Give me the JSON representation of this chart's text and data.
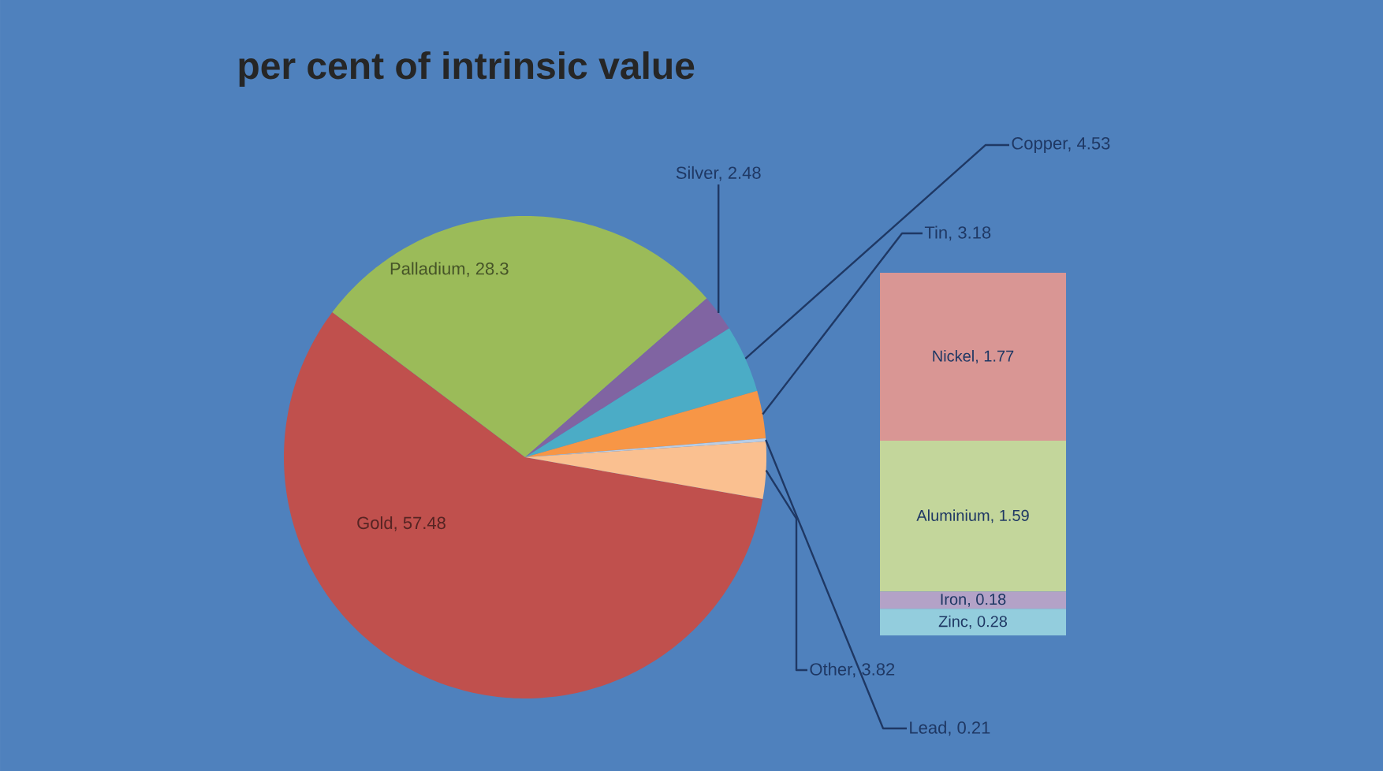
{
  "chart_data": [
    {
      "type": "pie",
      "title": "per cent of intrinsic value",
      "categories": [
        null,
        null,
        null,
        null,
        null,
        null,
        null
      ],
      "values": [
        57.48,
        28.3,
        2.48,
        4.53,
        3.18,
        0.21,
        3.82
      ],
      "colors": [
        "#c0504d",
        "#9bbb59",
        "#8064a2",
        "#4bacc6",
        "#f79646",
        "#b9cde5",
        "#fac090"
      ],
      "value_labels": [
        "Gold, 57.48",
        "Palladium, 28.3",
        "Silver, 2.48",
        "Copper, 4.53",
        "Tin, 3.18",
        "Lead, 0.21",
        "Other, 3.82"
      ]
    },
    {
      "type": "bar",
      "stacked": true,
      "categories": [
        null
      ],
      "series": [
        {
          "color": "#93cddd",
          "values": [
            0.28
          ],
          "value_labels": [
            "Zinc, 0.28"
          ]
        },
        {
          "color": "#b3a2c7",
          "values": [
            0.18
          ],
          "value_labels": [
            "Iron, 0.18"
          ]
        },
        {
          "color": "#c3d69b",
          "values": [
            1.59
          ],
          "value_labels": [
            "Aluminium, 1.59"
          ]
        },
        {
          "color": "#d99694",
          "values": [
            1.77
          ],
          "value_labels": [
            "Nickel, 1.77"
          ]
        }
      ]
    }
  ]
}
